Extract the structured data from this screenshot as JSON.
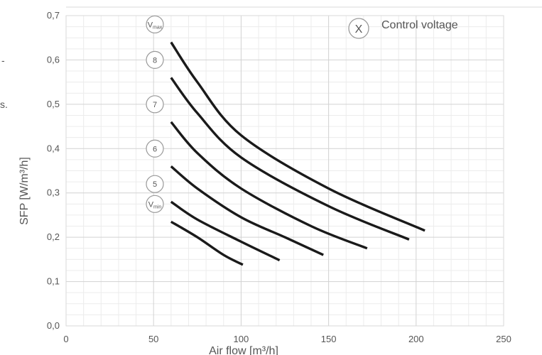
{
  "chart_data": {
    "type": "line",
    "title": "",
    "xlabel": "Air flow [m³/h]",
    "ylabel": "SFP [W/m³/h]",
    "xlim": [
      0,
      250
    ],
    "ylim": [
      0,
      0.7
    ],
    "x_ticks": [
      "0",
      "50",
      "100",
      "150",
      "200",
      "250"
    ],
    "y_ticks": [
      "0,0",
      "0,1",
      "0,2",
      "0,3",
      "0,4",
      "0,5",
      "0,6",
      "0,7"
    ],
    "grid": true,
    "legend": {
      "symbol": "X",
      "text": "Control voltage",
      "placement": "top-right"
    },
    "series": [
      {
        "label_main": "V",
        "label_sub": "max",
        "points": [
          [
            60,
            0.64
          ],
          [
            75,
            0.55
          ],
          [
            100,
            0.43
          ],
          [
            150,
            0.31
          ],
          [
            205,
            0.215
          ]
        ]
      },
      {
        "label_main": "8",
        "label_sub": "",
        "points": [
          [
            60,
            0.56
          ],
          [
            75,
            0.48
          ],
          [
            100,
            0.38
          ],
          [
            150,
            0.27
          ],
          [
            196,
            0.195
          ]
        ]
      },
      {
        "label_main": "7",
        "label_sub": "",
        "points": [
          [
            60,
            0.46
          ],
          [
            75,
            0.39
          ],
          [
            100,
            0.31
          ],
          [
            140,
            0.225
          ],
          [
            172,
            0.175
          ]
        ]
      },
      {
        "label_main": "6",
        "label_sub": "",
        "points": [
          [
            60,
            0.36
          ],
          [
            75,
            0.31
          ],
          [
            100,
            0.245
          ],
          [
            125,
            0.2
          ],
          [
            147,
            0.16
          ]
        ]
      },
      {
        "label_main": "5",
        "label_sub": "",
        "points": [
          [
            60,
            0.28
          ],
          [
            75,
            0.24
          ],
          [
            100,
            0.19
          ],
          [
            122,
            0.148
          ]
        ]
      },
      {
        "label_main": "V",
        "label_sub": "min",
        "points": [
          [
            60,
            0.235
          ],
          [
            75,
            0.2
          ],
          [
            90,
            0.16
          ],
          [
            101,
            0.138
          ]
        ]
      }
    ]
  },
  "edge_marks": [
    "-",
    "s."
  ]
}
